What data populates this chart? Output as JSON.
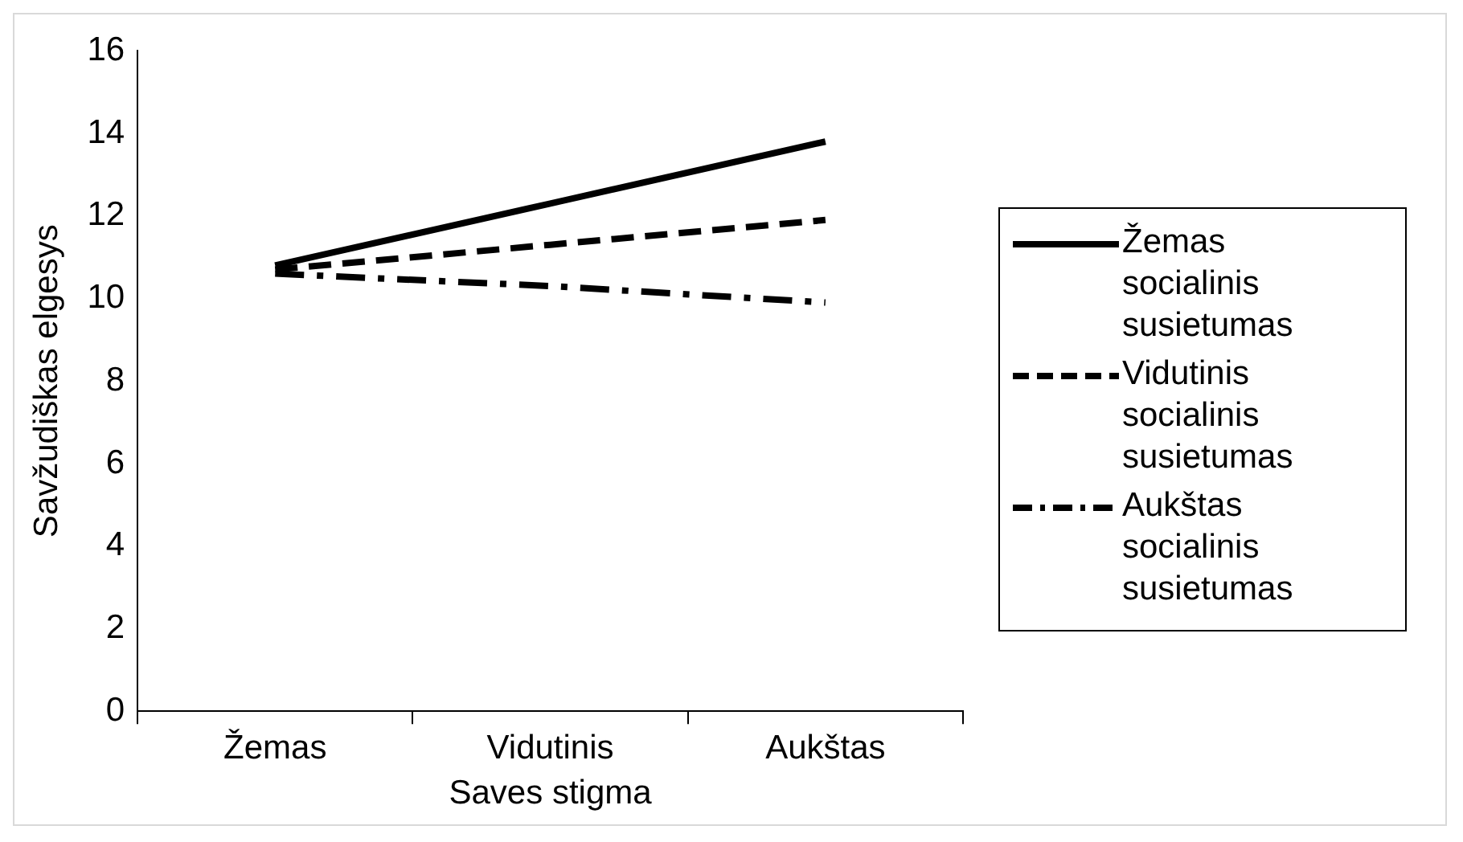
{
  "chart_data": {
    "type": "line",
    "xlabel": "Saves stigma",
    "ylabel": "Savžudiškas elgesys",
    "categories": [
      "Žemas",
      "Vidutinis",
      "Aukštas"
    ],
    "series": [
      {
        "name": "Žemas socialinis susietumas",
        "color": "#000000",
        "values": [
          10.8,
          12.3,
          13.8
        ],
        "line_style": "solid"
      },
      {
        "name": "Vidutinis socialinis susietumas",
        "color": "#000000",
        "values": [
          10.7,
          11.3,
          11.9
        ],
        "line_style": "dashed"
      },
      {
        "name": "Aukštas socialinis susietumas",
        "color": "#000000",
        "values": [
          10.6,
          10.3,
          9.9
        ],
        "line_style": "dashdot"
      }
    ],
    "ylim": [
      0,
      16
    ],
    "yticks": [
      0,
      2,
      4,
      6,
      8,
      10,
      12,
      14,
      16
    ],
    "grid": false,
    "legend": "right",
    "marker": "none"
  }
}
